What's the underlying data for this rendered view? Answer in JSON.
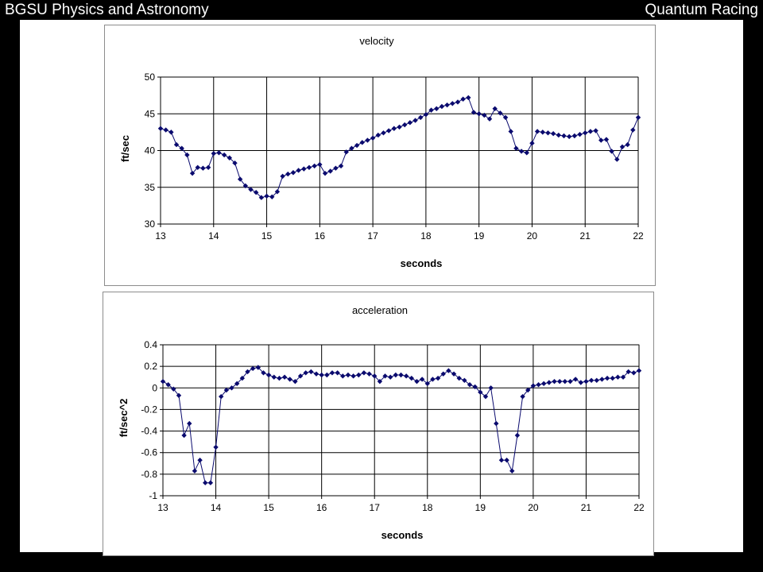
{
  "header": {
    "left": "BGSU Physics and Astronomy",
    "right": "Quantum Racing"
  },
  "colors": {
    "series": "#0a0a6e",
    "grid": "#000000",
    "plot_bg": "#ffffff"
  },
  "chart_data": [
    {
      "type": "line",
      "title": "velocity",
      "xlabel": "seconds",
      "ylabel": "ft/sec",
      "xlim": [
        13,
        22
      ],
      "ylim": [
        30,
        50
      ],
      "xticks": [
        13,
        14,
        15,
        16,
        17,
        18,
        19,
        20,
        21,
        22
      ],
      "yticks": [
        30,
        35,
        40,
        45,
        50
      ],
      "grid": "horizontal and vertical",
      "legend": "none",
      "series": [
        {
          "marker": "diamond",
          "x": [
            13,
            13.1,
            13.2,
            13.3,
            13.4,
            13.5,
            13.6,
            13.7,
            13.8,
            13.9,
            14,
            14.1,
            14.2,
            14.3,
            14.4,
            14.5,
            14.6,
            14.7,
            14.8,
            14.9,
            15,
            15.1,
            15.2,
            15.3,
            15.4,
            15.5,
            15.6,
            15.7,
            15.8,
            15.9,
            16,
            16.1,
            16.2,
            16.3,
            16.4,
            16.5,
            16.6,
            16.7,
            16.8,
            16.9,
            17,
            17.1,
            17.2,
            17.3,
            17.4,
            17.5,
            17.6,
            17.7,
            17.8,
            17.9,
            18,
            18.1,
            18.2,
            18.3,
            18.4,
            18.5,
            18.6,
            18.7,
            18.8,
            18.9,
            19,
            19.1,
            19.2,
            19.3,
            19.4,
            19.5,
            19.6,
            19.7,
            19.8,
            19.9,
            20,
            20.1,
            20.2,
            20.3,
            20.4,
            20.5,
            20.6,
            20.7,
            20.8,
            20.9,
            21,
            21.1,
            21.2,
            21.3,
            21.4,
            21.5,
            21.6,
            21.7,
            21.8,
            21.9,
            22
          ],
          "y": [
            43.0,
            42.8,
            42.5,
            40.8,
            40.3,
            39.4,
            36.9,
            37.7,
            37.6,
            37.7,
            39.6,
            39.7,
            39.4,
            39.0,
            38.3,
            36.1,
            35.2,
            34.7,
            34.3,
            33.6,
            33.8,
            33.7,
            34.4,
            36.5,
            36.8,
            37.0,
            37.3,
            37.5,
            37.7,
            37.9,
            38.1,
            36.9,
            37.2,
            37.6,
            37.9,
            39.8,
            40.3,
            40.7,
            41.1,
            41.4,
            41.7,
            42.1,
            42.4,
            42.7,
            43.0,
            43.2,
            43.5,
            43.8,
            44.1,
            44.5,
            44.9,
            45.5,
            45.7,
            46.0,
            46.2,
            46.4,
            46.6,
            47.0,
            47.2,
            45.2,
            45.0,
            44.8,
            44.3,
            45.7,
            45.1,
            44.5,
            42.6,
            40.3,
            39.9,
            39.7,
            41.0,
            42.6,
            42.5,
            42.4,
            42.3,
            42.1,
            42.0,
            41.9,
            42.0,
            42.2,
            42.4,
            42.6,
            42.7,
            41.4,
            41.5,
            39.9,
            38.8,
            40.5,
            40.8,
            42.8,
            44.5
          ]
        }
      ]
    },
    {
      "type": "line",
      "title": "acceleration",
      "xlabel": "seconds",
      "ylabel": "ft/sec^2",
      "xlim": [
        13,
        22
      ],
      "ylim": [
        -1,
        0.4
      ],
      "xticks": [
        13,
        14,
        15,
        16,
        17,
        18,
        19,
        20,
        21,
        22
      ],
      "yticks": [
        -1,
        -0.8,
        -0.6,
        -0.4,
        -0.2,
        0,
        0.2,
        0.4
      ],
      "grid": "horizontal and vertical",
      "legend": "none",
      "series": [
        {
          "marker": "diamond",
          "x": [
            13,
            13.1,
            13.2,
            13.3,
            13.4,
            13.5,
            13.6,
            13.7,
            13.8,
            13.9,
            14,
            14.1,
            14.2,
            14.3,
            14.4,
            14.5,
            14.6,
            14.7,
            14.8,
            14.9,
            15,
            15.1,
            15.2,
            15.3,
            15.4,
            15.5,
            15.6,
            15.7,
            15.8,
            15.9,
            16,
            16.1,
            16.2,
            16.3,
            16.4,
            16.5,
            16.6,
            16.7,
            16.8,
            16.9,
            17,
            17.1,
            17.2,
            17.3,
            17.4,
            17.5,
            17.6,
            17.7,
            17.8,
            17.9,
            18,
            18.1,
            18.2,
            18.3,
            18.4,
            18.5,
            18.6,
            18.7,
            18.8,
            18.9,
            19,
            19.1,
            19.2,
            19.3,
            19.4,
            19.5,
            19.6,
            19.7,
            19.8,
            19.9,
            20,
            20.1,
            20.2,
            20.3,
            20.4,
            20.5,
            20.6,
            20.7,
            20.8,
            20.9,
            21,
            21.1,
            21.2,
            21.3,
            21.4,
            21.5,
            21.6,
            21.7,
            21.8,
            21.9,
            22
          ],
          "y": [
            0.06,
            0.03,
            -0.01,
            -0.07,
            -0.44,
            -0.33,
            -0.77,
            -0.67,
            -0.88,
            -0.88,
            -0.55,
            -0.08,
            -0.02,
            0.0,
            0.04,
            0.09,
            0.15,
            0.18,
            0.19,
            0.14,
            0.12,
            0.1,
            0.09,
            0.1,
            0.08,
            0.06,
            0.11,
            0.14,
            0.15,
            0.13,
            0.12,
            0.12,
            0.14,
            0.14,
            0.11,
            0.12,
            0.11,
            0.12,
            0.14,
            0.13,
            0.11,
            0.06,
            0.11,
            0.1,
            0.12,
            0.12,
            0.11,
            0.09,
            0.06,
            0.08,
            0.04,
            0.08,
            0.09,
            0.13,
            0.16,
            0.13,
            0.09,
            0.07,
            0.03,
            0.01,
            -0.04,
            -0.08,
            0.0,
            -0.33,
            -0.67,
            -0.67,
            -0.77,
            -0.44,
            -0.08,
            -0.02,
            0.02,
            0.03,
            0.04,
            0.05,
            0.06,
            0.06,
            0.06,
            0.06,
            0.08,
            0.05,
            0.06,
            0.07,
            0.07,
            0.08,
            0.09,
            0.09,
            0.1,
            0.1,
            0.15,
            0.14,
            0.16
          ]
        }
      ]
    }
  ]
}
